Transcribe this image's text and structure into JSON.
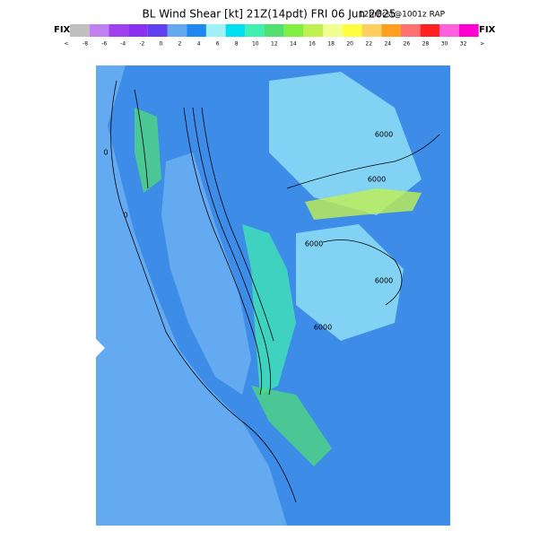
{
  "header": {
    "title": "BL Wind Shear [kt] 21Z(14pdt) FRI 06 Jun 2025",
    "subtitle": "12hrFcst@1001z RAP",
    "left_tag": "FIX",
    "right_tag": "FIX"
  },
  "legend": {
    "colors": [
      "#c0c0c0",
      "#c080f0",
      "#a040f0",
      "#8a30f0",
      "#6040f0",
      "#64a8f0",
      "#1e88f0",
      "#a0f0f8",
      "#00e0f0",
      "#40f0b0",
      "#50e070",
      "#80f040",
      "#c0f050",
      "#f0ff90",
      "#ffff40",
      "#ffd060",
      "#ffa020",
      "#ff7070",
      "#ff2020",
      "#ff60e0",
      "#ff00d0"
    ],
    "labels": [
      "<",
      "-8",
      "-6",
      "-4",
      "-2",
      "0",
      "2",
      "4",
      "6",
      "8",
      "10",
      "12",
      "14",
      "16",
      "18",
      "20",
      "22",
      "24",
      "26",
      "28",
      "30",
      "32",
      ">"
    ]
  },
  "map": {
    "contour_labels": [
      "6000",
      "6000",
      "6000",
      "6000",
      "0",
      "0",
      "6000"
    ]
  }
}
